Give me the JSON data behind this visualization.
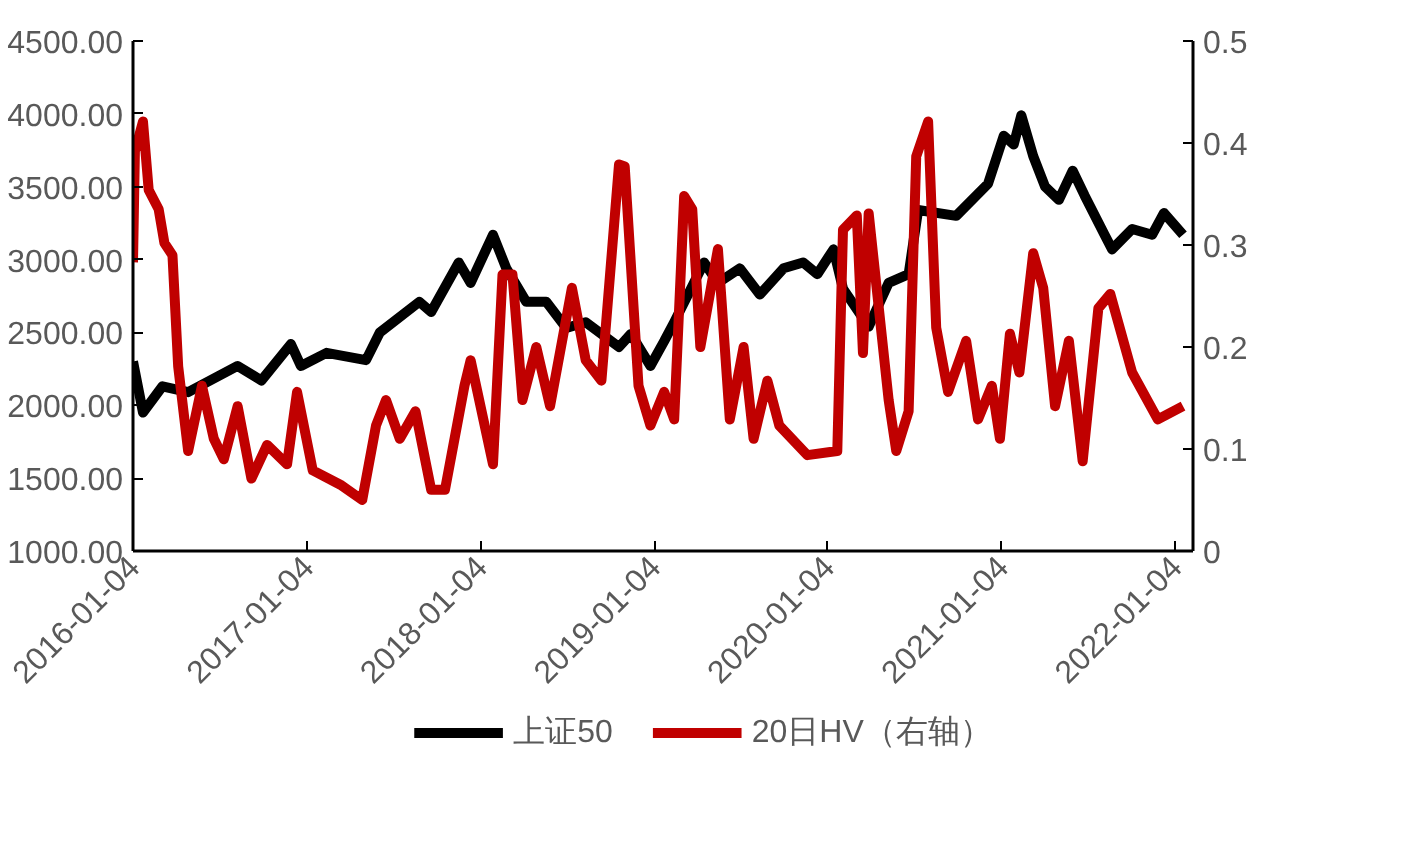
{
  "chart_data": {
    "type": "line",
    "legend": "bottom",
    "grid": false,
    "xlim": [
      "2016-01-04",
      "2022-02-10"
    ],
    "xticks": [
      {
        "value": "2016-01-04",
        "label": "2016-01-04"
      },
      {
        "value": "2017-01-04",
        "label": "2017-01-04"
      },
      {
        "value": "2018-01-04",
        "label": "2018-01-04"
      },
      {
        "value": "2019-01-04",
        "label": "2019-01-04"
      },
      {
        "value": "2020-01-04",
        "label": "2020-01-04"
      },
      {
        "value": "2021-01-04",
        "label": "2021-01-04"
      },
      {
        "value": "2022-01-04",
        "label": "2022-01-04"
      }
    ],
    "ylim": [
      1000,
      4500
    ],
    "yticks": [
      {
        "value": 1000,
        "label": "1000.00"
      },
      {
        "value": 1500,
        "label": "1500.00"
      },
      {
        "value": 2000,
        "label": "2000.00"
      },
      {
        "value": 2500,
        "label": "2500.00"
      },
      {
        "value": 3000,
        "label": "3000.00"
      },
      {
        "value": 3500,
        "label": "3500.00"
      },
      {
        "value": 4000,
        "label": "4000.00"
      },
      {
        "value": 4500,
        "label": "4500.00"
      }
    ],
    "y2lim": [
      0,
      0.5
    ],
    "y2ticks": [
      0,
      0.1,
      0.2,
      0.3,
      0.4,
      0.5
    ],
    "series": [
      {
        "name": "上证50",
        "color": "#000000",
        "x": [
          "2016-01-04",
          "2016-01-25",
          "2016-03-06",
          "2016-04-29",
          "2016-08-11",
          "2016-09-30",
          "2016-12-01",
          "2016-12-22",
          "2017-02-14",
          "2017-05-08",
          "2017-06-06",
          "2017-08-28",
          "2017-09-22",
          "2017-11-19",
          "2017-12-14",
          "2018-01-30",
          "2018-02-27",
          "2018-04-10",
          "2018-05-22",
          "2018-07-03",
          "2018-08-13",
          "2018-10-22",
          "2018-11-16",
          "2018-12-27",
          "2019-01-25",
          "2019-02-15",
          "2019-04-19",
          "2019-05-18",
          "2019-07-03",
          "2019-08-14",
          "2019-10-03",
          "2019-11-13",
          "2019-12-13",
          "2020-01-16",
          "2020-02-05",
          "2020-03-30",
          "2020-05-11",
          "2020-06-22",
          "2020-07-12",
          "2020-09-30",
          "2020-12-06",
          "2021-01-08",
          "2021-01-29",
          "2021-02-14",
          "2021-03-11",
          "2021-04-05",
          "2021-05-04",
          "2021-06-02",
          "2021-06-27",
          "2021-08-08",
          "2021-08-24",
          "2021-10-05",
          "2021-11-16",
          "2021-12-11",
          "2022-01-20"
        ],
        "values": [
          2300,
          1950,
          2130,
          2090,
          2270,
          2170,
          2420,
          2270,
          2360,
          2310,
          2500,
          2710,
          2640,
          2980,
          2840,
          3170,
          2940,
          2710,
          2710,
          2530,
          2570,
          2400,
          2490,
          2270,
          2440,
          2570,
          2980,
          2840,
          2940,
          2760,
          2940,
          2980,
          2900,
          3070,
          2800,
          2540,
          2840,
          2900,
          3340,
          3300,
          3520,
          3850,
          3790,
          3990,
          3710,
          3500,
          3410,
          3610,
          3440,
          3170,
          3070,
          3210,
          3170,
          3320,
          3170
        ]
      },
      {
        "name": "20日HV（右轴）",
        "color": "#c00000",
        "axis": "y2",
        "x": [
          "2016-01-04",
          "2016-01-08",
          "2016-01-25",
          "2016-02-06",
          "2016-02-27",
          "2016-03-10",
          "2016-03-27",
          "2016-04-08",
          "2016-04-29",
          "2016-05-28",
          "2016-06-22",
          "2016-07-13",
          "2016-08-11",
          "2016-09-09",
          "2016-10-12",
          "2016-11-23",
          "2016-12-14",
          "2017-01-16",
          "2017-03-15",
          "2017-04-30",
          "2017-05-29",
          "2017-06-19",
          "2017-07-18",
          "2017-08-20",
          "2017-09-22",
          "2017-10-21",
          "2017-12-01",
          "2017-12-14",
          "2018-01-30",
          "2018-02-19",
          "2018-03-12",
          "2018-04-02",
          "2018-05-01",
          "2018-05-30",
          "2018-07-15",
          "2018-08-13",
          "2018-09-15",
          "2018-10-22",
          "2018-11-03",
          "2018-12-02",
          "2018-12-27",
          "2019-01-25",
          "2019-02-15",
          "2019-03-08",
          "2019-03-25",
          "2019-04-11",
          "2019-05-18",
          "2019-06-12",
          "2019-07-11",
          "2019-08-01",
          "2019-08-30",
          "2019-09-24",
          "2019-11-22",
          "2020-01-24",
          "2020-02-05",
          "2020-03-05",
          "2020-03-18",
          "2020-03-30",
          "2020-05-11",
          "2020-05-27",
          "2020-06-22",
          "2020-07-08",
          "2020-08-02",
          "2020-08-19",
          "2020-09-13",
          "2020-10-21",
          "2020-11-15",
          "2020-12-14",
          "2020-12-31",
          "2021-01-21",
          "2021-02-10",
          "2021-03-11",
          "2021-04-01",
          "2021-04-26",
          "2021-05-25",
          "2021-06-23",
          "2021-07-26",
          "2021-08-20",
          "2021-10-05",
          "2021-11-28",
          "2022-01-20"
        ],
        "values": [
          0.283,
          0.392,
          0.421,
          0.354,
          0.335,
          0.302,
          0.29,
          0.181,
          0.098,
          0.162,
          0.11,
          0.09,
          0.142,
          0.071,
          0.104,
          0.085,
          0.156,
          0.079,
          0.065,
          0.05,
          0.123,
          0.148,
          0.11,
          0.137,
          0.06,
          0.06,
          0.162,
          0.187,
          0.085,
          0.271,
          0.271,
          0.148,
          0.2,
          0.142,
          0.258,
          0.187,
          0.167,
          0.379,
          0.377,
          0.162,
          0.123,
          0.156,
          0.129,
          0.348,
          0.335,
          0.2,
          0.296,
          0.129,
          0.2,
          0.11,
          0.167,
          0.123,
          0.094,
          0.098,
          0.315,
          0.329,
          0.194,
          0.331,
          0.148,
          0.098,
          0.137,
          0.387,
          0.421,
          0.219,
          0.156,
          0.206,
          0.129,
          0.162,
          0.11,
          0.213,
          0.175,
          0.292,
          0.258,
          0.142,
          0.206,
          0.088,
          0.238,
          0.252,
          0.175,
          0.129,
          0.142
        ]
      }
    ]
  }
}
